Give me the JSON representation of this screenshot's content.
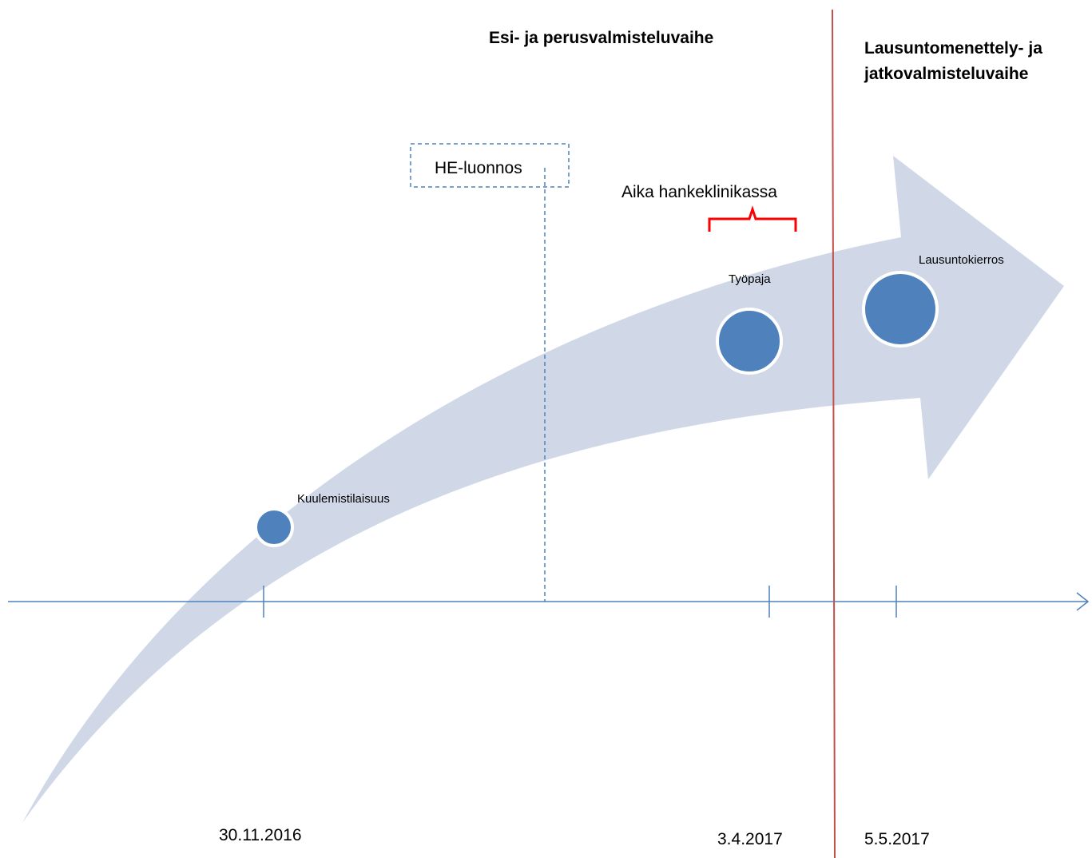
{
  "phases": {
    "first": "Esi- ja perusvalmisteluvaihe",
    "second": [
      "Lausuntomenettely- ja",
      "jatkovalmisteluvaihe"
    ]
  },
  "draft_label": "HE-luonnos",
  "clinic_label": "Aika hankeklinikassa",
  "events": [
    "Kuulemistilaisuus",
    "Työpaja",
    "Lausuntokierros"
  ],
  "dates": [
    "30.11.2016",
    "3.4.2017",
    "5.5.2017"
  ]
}
